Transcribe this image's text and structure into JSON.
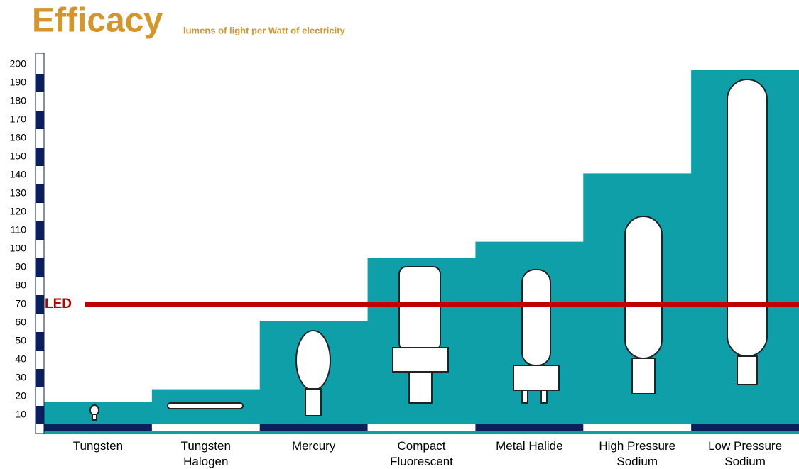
{
  "chart_data": {
    "type": "bar",
    "title": "Efficacy",
    "subtitle": "lumens of light per Watt of electricity",
    "categories": [
      "Tungsten",
      "Tungsten Halogen",
      "Mercury",
      "Compact Fluorescent",
      "Metal Halide",
      "High Pressure Sodium",
      "Low Pressure Sodium"
    ],
    "values": [
      17,
      24,
      61,
      95,
      104,
      141,
      197
    ],
    "color": "#0e9fa9",
    "ylim": [
      0,
      206
    ],
    "yticks": [
      10,
      20,
      30,
      40,
      50,
      60,
      70,
      80,
      90,
      100,
      110,
      120,
      130,
      140,
      150,
      160,
      170,
      180,
      190,
      200
    ],
    "grid": false,
    "reference_line": {
      "label": "LED",
      "value": 70,
      "color": "#c00000"
    }
  }
}
